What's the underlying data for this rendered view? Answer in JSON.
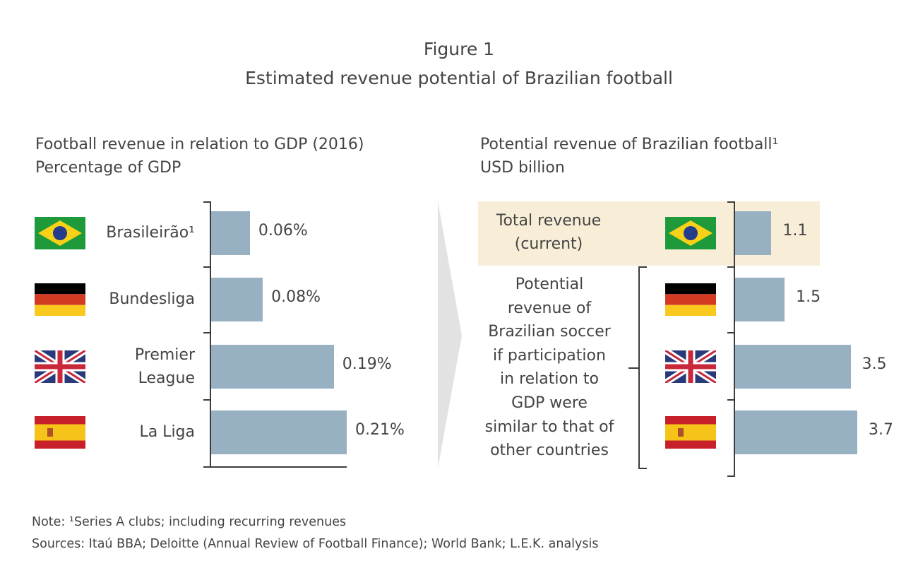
{
  "figure": {
    "label": "Figure 1",
    "title": "Estimated revenue potential of Brazilian football"
  },
  "chart_data": [
    {
      "type": "bar",
      "title": "Football revenue in relation to GDP (2016)",
      "subtitle": "Percentage of GDP",
      "categories": [
        "Brasileirão¹",
        "Bundesliga",
        "Premier League",
        "La Liga"
      ],
      "values": [
        0.06,
        0.08,
        0.19,
        0.21
      ],
      "value_labels": [
        "0.06%",
        "0.08%",
        "0.19%",
        "0.21%"
      ],
      "flags": [
        "brazil",
        "germany",
        "uk",
        "spain"
      ],
      "xlim": [
        0,
        0.21
      ]
    },
    {
      "type": "bar",
      "title": "Potential revenue of Brazilian football¹",
      "subtitle": "USD billion",
      "categories": [
        "brazil",
        "germany",
        "uk",
        "spain"
      ],
      "values": [
        1.1,
        1.5,
        3.5,
        3.7
      ],
      "value_labels": [
        "1.1",
        "1.5",
        "3.5",
        "3.7"
      ],
      "xlim": [
        0,
        3.7
      ],
      "highlight_label": [
        "Total revenue",
        "(current)"
      ],
      "bracket_label": [
        "Potential",
        "revenue of",
        "Brazilian soccer",
        "if participation",
        "in relation to",
        "GDP were",
        "similar to that of",
        "other countries"
      ],
      "highlight_color": "#f8eed7",
      "bar_color": "#97b1c3"
    }
  ],
  "notes": {
    "note": "Note: ¹Series A clubs; including recurring revenues",
    "sources": "Sources: Itaú BBA; Deloitte (Annual Review of Football Finance); World Bank; L.E.K. analysis"
  }
}
